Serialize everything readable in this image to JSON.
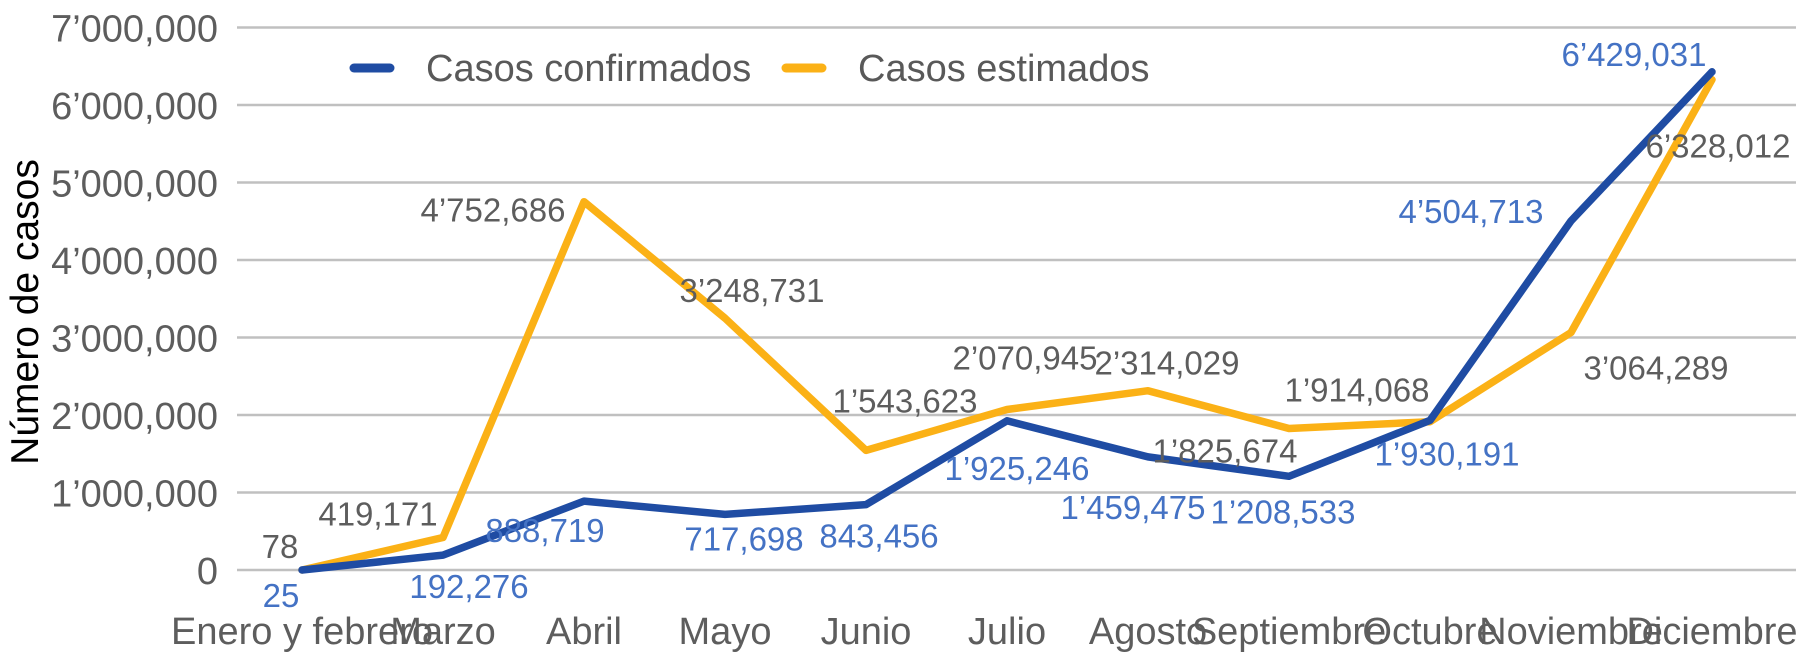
{
  "chart_data": {
    "type": "line",
    "title": "",
    "ylabel": "Número de casos",
    "ylim": [
      0,
      7000000
    ],
    "y_tick_step": 1000000,
    "y_tick_labels": [
      "0",
      "1’000,000",
      "2’000,000",
      "3’000,000",
      "4’000,000",
      "5’000,000",
      "6’000,000",
      "7’000,000"
    ],
    "grid": true,
    "legend_position": "top-inside",
    "categories": [
      "Enero y febrero",
      "Marzo",
      "Abril",
      "Mayo",
      "Junio",
      "Julio",
      "Agosto",
      "Septiembre",
      "Octubre",
      "Noviembre",
      "Diciembre"
    ],
    "series": [
      {
        "name": "Casos estimados",
        "color": "#FBB116",
        "label_color": "#5D5D5D",
        "values": [
          78,
          419171,
          4752686,
          3248731,
          1543623,
          2070945,
          2314029,
          1825674,
          1914068,
          3064289,
          6328012
        ],
        "labels": [
          "78",
          "419,171",
          "4’752,686",
          "3’248,731",
          "1’543,623",
          "2’070,945",
          "2’314,029",
          "1’825,674",
          "1’914,068",
          "3’064,289",
          "6’328,012"
        ],
        "label_offsets": [
          [
            -22,
            -12
          ],
          [
            -65,
            -12
          ],
          [
            -91,
            20
          ],
          [
            27,
            -16
          ],
          [
            39,
            -38
          ],
          [
            18,
            -40
          ],
          [
            19,
            -16
          ],
          [
            -64,
            34
          ],
          [
            -73,
            -20
          ],
          [
            85,
            47
          ],
          [
            6,
            78
          ]
        ]
      },
      {
        "name": "Casos confirmados",
        "color": "#1F4CA3",
        "label_color": "#4472C4",
        "values": [
          25,
          192276,
          888719,
          717698,
          843456,
          1925246,
          1459475,
          1208533,
          1930191,
          4504713,
          6429031
        ],
        "labels": [
          "25",
          "192,276",
          "888,719",
          "717,698",
          "843,456",
          "1’925,246",
          "1’459,475",
          "1’208,533",
          "1’930,191",
          "4’504,713",
          "6’429,031"
        ],
        "label_offsets": [
          [
            -21,
            37
          ],
          [
            26,
            43
          ],
          [
            -39,
            41
          ],
          [
            19,
            36
          ],
          [
            13,
            43
          ],
          [
            10,
            59
          ],
          [
            -15,
            62
          ],
          [
            -6,
            47
          ],
          [
            17,
            45
          ],
          [
            -100,
            2
          ],
          [
            -78,
            -6
          ]
        ]
      }
    ]
  },
  "legend": {
    "order": [
      "Casos confirmados",
      "Casos estimados"
    ]
  },
  "colors": {
    "grid": "#C0C0C0",
    "axis_text": "#5D5D5D",
    "legend_text": "#595959",
    "background": "#FFFFFF"
  }
}
